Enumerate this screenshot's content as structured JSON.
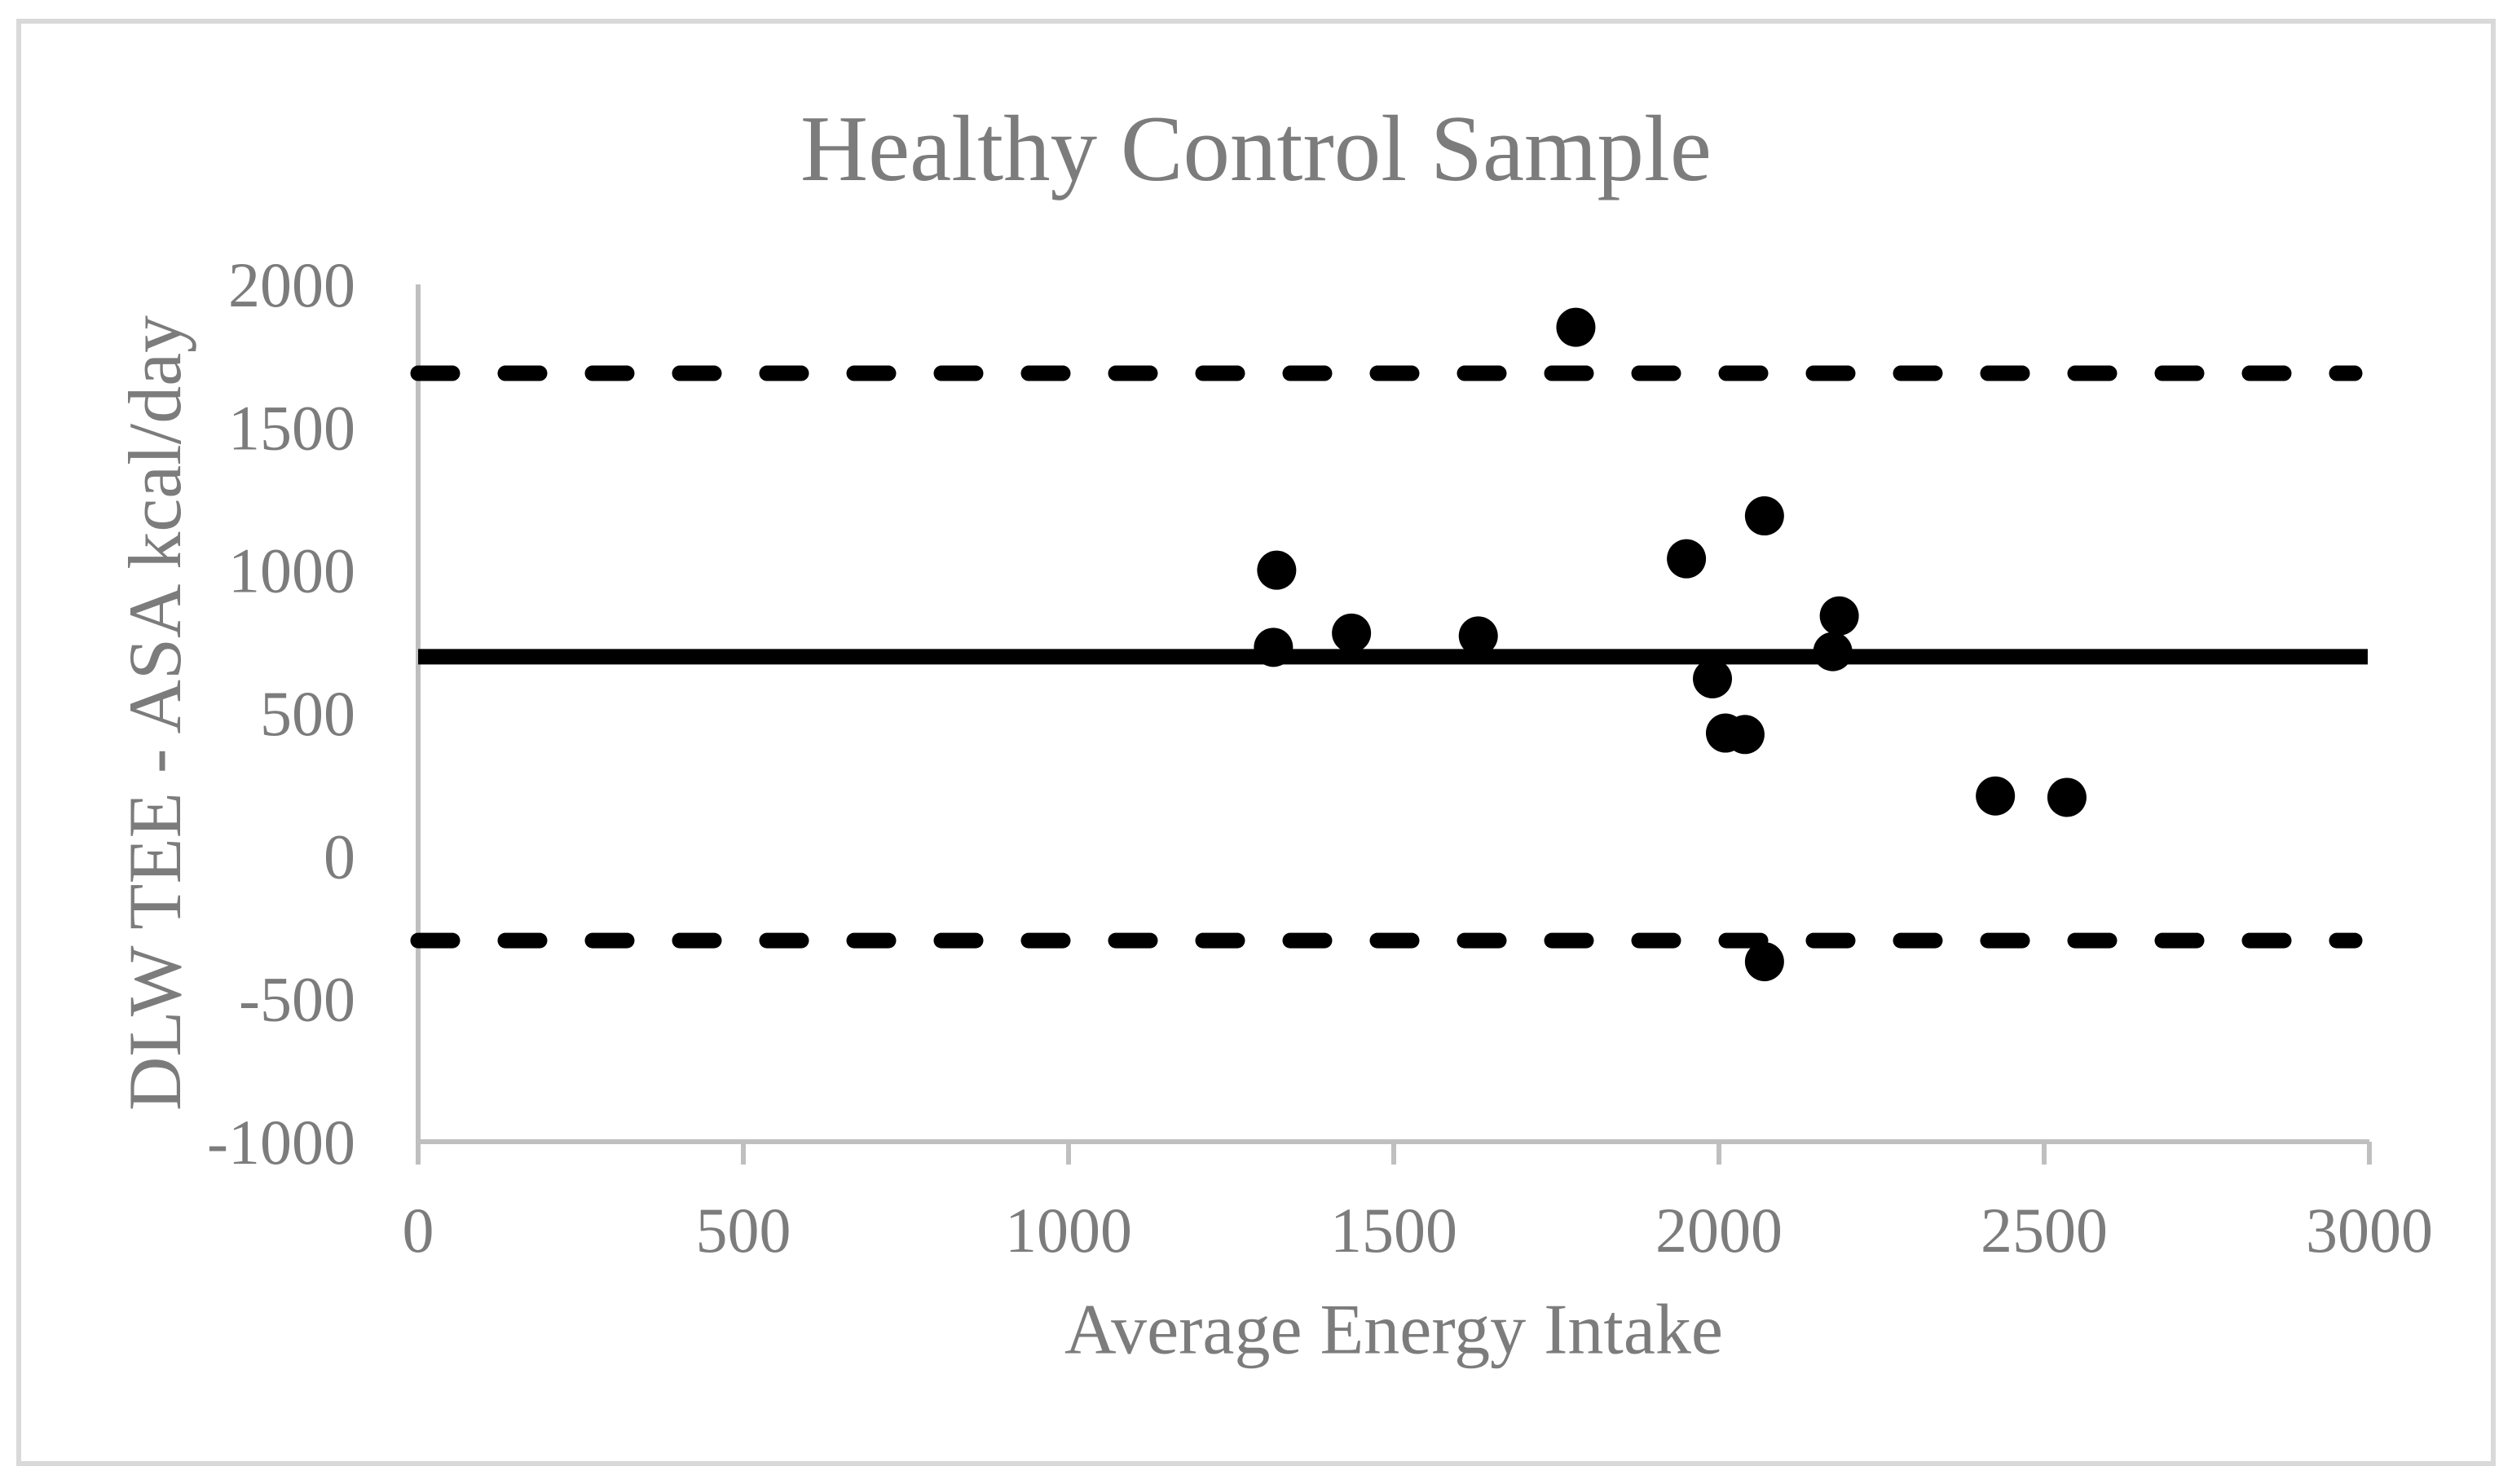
{
  "page": {
    "background": "#FFFFFF",
    "border_color": "#D9D9D9"
  },
  "chart_data": {
    "type": "scatter",
    "title": "Healthy Control Sample",
    "xlabel": "Average Energy Intake",
    "ylabel": "DLW TEE - ASA kcal/day",
    "xlim": [
      0,
      3000
    ],
    "ylim": [
      -1000,
      2000
    ],
    "x_ticks": [
      0,
      500,
      1000,
      1500,
      2000,
      2500,
      3000
    ],
    "y_ticks": [
      2000,
      1500,
      1000,
      500,
      0,
      -500,
      -1000
    ],
    "grid": false,
    "legend": "none",
    "marker": {
      "shape": "circle",
      "color": "#000000"
    },
    "points": [
      {
        "x": 1315,
        "y": 730
      },
      {
        "x": 1320,
        "y": 1000
      },
      {
        "x": 1435,
        "y": 780
      },
      {
        "x": 1630,
        "y": 770
      },
      {
        "x": 1780,
        "y": 1850
      },
      {
        "x": 1950,
        "y": 1040
      },
      {
        "x": 1990,
        "y": 620
      },
      {
        "x": 2010,
        "y": 430
      },
      {
        "x": 2040,
        "y": 425
      },
      {
        "x": 2070,
        "y": 1190
      },
      {
        "x": 2070,
        "y": -370
      },
      {
        "x": 2175,
        "y": 715
      },
      {
        "x": 2185,
        "y": 840
      },
      {
        "x": 2425,
        "y": 210
      },
      {
        "x": 2535,
        "y": 205
      }
    ],
    "reference_lines": [
      {
        "name": "mean-difference",
        "value": 697,
        "style": "solid"
      },
      {
        "name": "upper-limit-of-agreement",
        "value": 1689,
        "style": "dashed"
      },
      {
        "name": "lower-limit-of-agreement",
        "value": -296,
        "style": "dashed"
      }
    ],
    "colors": {
      "points": "#000000",
      "reference_lines": "#000000",
      "axis": "#BFBFBF",
      "text": "#7C7C7C",
      "border": "#D9D9D9"
    }
  }
}
